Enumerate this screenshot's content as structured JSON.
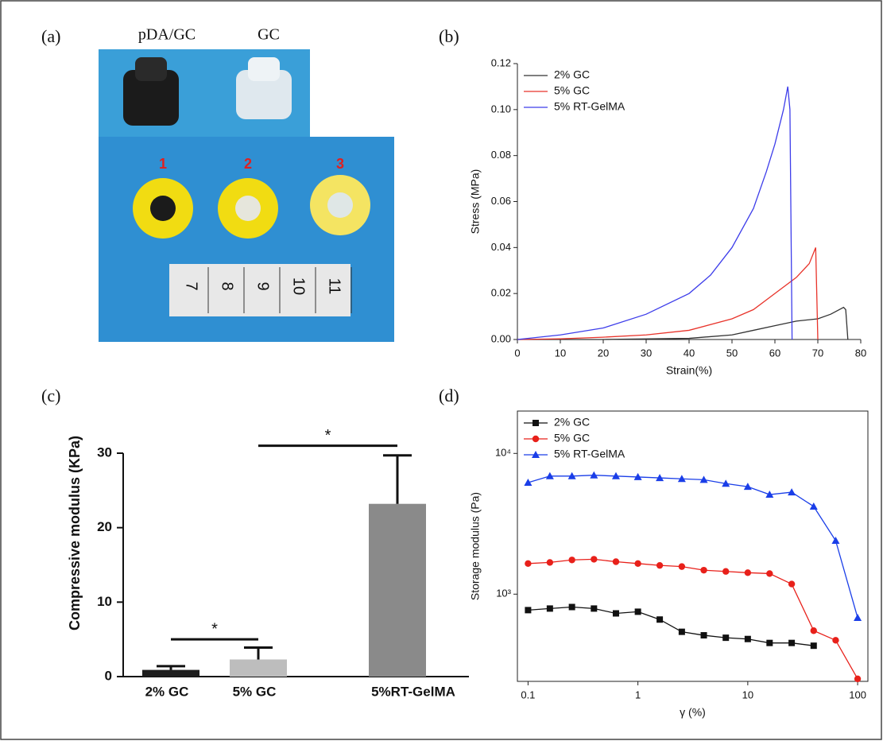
{
  "panel_labels": [
    "(a)",
    "(b)",
    "(c)",
    "(d)"
  ],
  "photo": {
    "top_labels": [
      "pDA/GC",
      "GC"
    ],
    "sample_labels": [
      "1",
      "2",
      "3"
    ],
    "ruler_labels": [
      "7",
      "8",
      "9",
      "10",
      "11"
    ]
  },
  "chart_data": [
    {
      "type": "line",
      "xlabel": "Strain(%)",
      "ylabel": "Stress (MPa)",
      "legend": "upper left",
      "xlim": [
        0,
        80
      ],
      "xticks": [
        0,
        10,
        20,
        30,
        40,
        50,
        60,
        70,
        80
      ],
      "ylim": [
        0,
        0.12
      ],
      "yticks": [
        {
          "value": 0,
          "label": "0.00"
        },
        {
          "value": 0.02,
          "label": "0.02"
        },
        {
          "value": 0.04,
          "label": "0.04"
        },
        {
          "value": 0.06,
          "label": "0.06"
        },
        {
          "value": 0.08,
          "label": "0.08"
        },
        {
          "value": 0.1,
          "label": "0.10"
        },
        {
          "value": 0.12,
          "label": "0.12"
        }
      ],
      "series": [
        {
          "name": "2% GC",
          "color": "#333333",
          "x": [
            0,
            20,
            40,
            50,
            55,
            60,
            65,
            70,
            73,
            75,
            76,
            76.5,
            77
          ],
          "values": [
            0,
            0,
            0.0005,
            0.002,
            0.004,
            0.006,
            0.008,
            0.009,
            0.011,
            0.013,
            0.014,
            0.013,
            0
          ]
        },
        {
          "name": "5% GC",
          "color": "#e8332a",
          "x": [
            0,
            10,
            20,
            30,
            40,
            50,
            55,
            60,
            65,
            68,
            69.5,
            70
          ],
          "values": [
            0,
            0.0003,
            0.001,
            0.002,
            0.004,
            0.009,
            0.013,
            0.02,
            0.027,
            0.033,
            0.04,
            0
          ]
        },
        {
          "name": "5% RT-GelMA",
          "color": "#3d3dea",
          "x": [
            0,
            10,
            20,
            30,
            40,
            45,
            50,
            55,
            58,
            60,
            62,
            63,
            63.5,
            64
          ],
          "values": [
            0,
            0.002,
            0.005,
            0.011,
            0.02,
            0.028,
            0.04,
            0.057,
            0.073,
            0.085,
            0.1,
            0.11,
            0.1,
            0
          ]
        }
      ]
    },
    {
      "type": "bar",
      "ylabel": "Compressive modulus (KPa)",
      "categories": [
        "2% GC",
        "5% GC",
        "5%RT-GelMA"
      ],
      "values": [
        0.9,
        2.3,
        23.2
      ],
      "errors": [
        0.5,
        1.6,
        6.5
      ],
      "colors": [
        "#1e1e1e",
        "#bdbdbd",
        "#8a8a8a"
      ],
      "ylim": [
        0,
        30
      ],
      "yticks": [
        0,
        10,
        20,
        30
      ],
      "annotations": [
        {
          "text": "*",
          "x": [
            0,
            1
          ],
          "y": 5
        },
        {
          "text": "*",
          "x": [
            1,
            2
          ],
          "y": 31
        }
      ]
    },
    {
      "type": "line",
      "xlabel": "γ (%)",
      "ylabel": "Storage modulus (Pa)",
      "legend": "upper left",
      "log_x": true,
      "log_y": true,
      "xlim": [
        0.08,
        124
      ],
      "xticks": [
        0.1,
        1,
        10,
        100
      ],
      "ylim": [
        240,
        20000
      ],
      "yticks": [
        {
          "value": 1000,
          "label": "10³"
        },
        {
          "value": 10000,
          "label": "10⁴"
        }
      ],
      "series": [
        {
          "name": "2% GC",
          "color": "#111111",
          "marker": "square",
          "x": [
            0.1,
            0.158,
            0.251,
            0.398,
            0.631,
            1,
            1.58,
            2.51,
            3.98,
            6.31,
            10,
            15.8,
            25.1,
            39.8
          ],
          "values": [
            770,
            790,
            810,
            790,
            730,
            750,
            660,
            540,
            510,
            490,
            480,
            450,
            450,
            430
          ]
        },
        {
          "name": "5% GC",
          "color": "#e8201a",
          "marker": "circle",
          "x": [
            0.1,
            0.158,
            0.251,
            0.398,
            0.631,
            1,
            1.58,
            2.51,
            3.98,
            6.31,
            10,
            15.8,
            25.1,
            39.8,
            63.1,
            100
          ],
          "values": [
            1650,
            1680,
            1750,
            1770,
            1700,
            1650,
            1600,
            1570,
            1480,
            1450,
            1420,
            1400,
            1180,
            550,
            470,
            250
          ]
        },
        {
          "name": "5% RT-GelMA",
          "color": "#1a3ee8",
          "marker": "triangle",
          "x": [
            0.1,
            0.158,
            0.251,
            0.398,
            0.631,
            1,
            1.58,
            2.51,
            3.98,
            6.31,
            10,
            15.8,
            25.1,
            39.8,
            63.1,
            100
          ],
          "values": [
            6200,
            6900,
            6900,
            7000,
            6900,
            6800,
            6700,
            6600,
            6500,
            6100,
            5800,
            5100,
            5300,
            4200,
            2400,
            680
          ]
        }
      ]
    }
  ]
}
